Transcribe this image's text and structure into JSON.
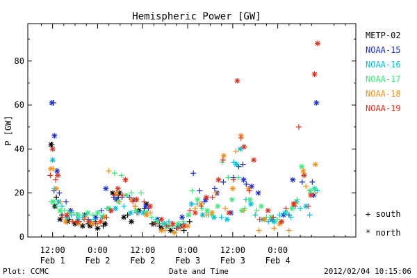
{
  "chart_data": {
    "type": "scatter",
    "title": "Hemispheric Power [GW]",
    "ylabel": "P [GW]",
    "xlabel": "Date and Time",
    "ylim": [
      0,
      97
    ],
    "xlim": [
      5.4,
      92.8
    ],
    "x_unit": "hours after 2012/02/01 00:00",
    "yticks": [
      0,
      20,
      40,
      60,
      80
    ],
    "xticks": [
      {
        "x": 12,
        "time": "12:00",
        "date": "Feb 1"
      },
      {
        "x": 24,
        "time": "0:00",
        "date": "Feb 2"
      },
      {
        "x": 36,
        "time": "12:00",
        "date": "Feb 2"
      },
      {
        "x": 48,
        "time": "0:00",
        "date": "Feb 3"
      },
      {
        "x": 60,
        "time": "12:00",
        "date": "Feb 3"
      },
      {
        "x": 72,
        "time": "0:00",
        "date": "Feb 4"
      }
    ],
    "legend_position": "right",
    "marker_legend": [
      {
        "symbol": "+",
        "label": "south"
      },
      {
        "symbol": "*",
        "label": "north"
      }
    ],
    "series": [
      {
        "name": "METP-02",
        "color": "#000000",
        "south": [
          [
            12.2,
            61
          ],
          [
            11.8,
            42
          ],
          [
            13.0,
            18
          ],
          [
            14.5,
            10
          ],
          [
            16.5,
            8
          ],
          [
            19.0,
            7
          ],
          [
            21.5,
            6
          ],
          [
            23.5,
            7
          ],
          [
            25.5,
            5
          ],
          [
            27.5,
            12
          ],
          [
            29.5,
            18
          ],
          [
            32.0,
            10
          ],
          [
            34.0,
            14
          ],
          [
            36.5,
            13
          ],
          [
            38.5,
            6
          ],
          [
            40.5,
            5
          ],
          [
            43.0,
            5
          ],
          [
            45.0,
            4
          ],
          [
            47.0,
            3
          ],
          [
            48.5,
            7
          ]
        ],
        "north": [
          [
            11.6,
            42
          ],
          [
            12.6,
            14
          ],
          [
            14.0,
            8
          ],
          [
            16.0,
            7
          ],
          [
            18.0,
            6
          ],
          [
            20.0,
            5
          ],
          [
            22.0,
            5
          ],
          [
            24.0,
            4
          ],
          [
            26.0,
            6
          ],
          [
            28.0,
            20
          ],
          [
            29.8,
            20
          ],
          [
            31.0,
            9
          ],
          [
            33.0,
            7
          ],
          [
            35.0,
            12
          ],
          [
            37.0,
            15
          ],
          [
            39.0,
            6
          ],
          [
            41.0,
            4
          ],
          [
            43.5,
            3
          ],
          [
            46.0,
            5
          ]
        ]
      },
      {
        "name": "NOAA-15",
        "color": "#1c2fd6",
        "south": [
          [
            12.4,
            21
          ],
          [
            13.8,
            20
          ],
          [
            15.6,
            16
          ],
          [
            18.5,
            10
          ],
          [
            21.5,
            8
          ],
          [
            25.0,
            12
          ],
          [
            28.3,
            18
          ],
          [
            30.5,
            18
          ],
          [
            32.5,
            18
          ],
          [
            34.5,
            11
          ],
          [
            37.5,
            13
          ],
          [
            40.5,
            6
          ],
          [
            44.0,
            5
          ],
          [
            49.5,
            29
          ],
          [
            51.2,
            21
          ],
          [
            52.4,
            16
          ],
          [
            55.2,
            22
          ],
          [
            57.5,
            25
          ],
          [
            60.2,
            27
          ],
          [
            61.6,
            32
          ],
          [
            62.7,
            33
          ],
          [
            63.6,
            24
          ],
          [
            75.0,
            10
          ],
          [
            76.6,
            14
          ],
          [
            78.5,
            25
          ],
          [
            81.2,
            25
          ]
        ],
        "north": [
          [
            11.8,
            61
          ],
          [
            12.5,
            46
          ],
          [
            13.2,
            30
          ],
          [
            16.8,
            12
          ],
          [
            20.5,
            10
          ],
          [
            23.5,
            9
          ],
          [
            26.2,
            22
          ],
          [
            29.0,
            17
          ],
          [
            33.5,
            17
          ],
          [
            36.8,
            14
          ],
          [
            40.0,
            8
          ],
          [
            46.5,
            9
          ],
          [
            52.8,
            17
          ],
          [
            55.8,
            20
          ],
          [
            59.5,
            11
          ],
          [
            62.9,
            26
          ],
          [
            65.0,
            23
          ],
          [
            66.8,
            20
          ],
          [
            70.5,
            8
          ],
          [
            73.5,
            10
          ],
          [
            76.0,
            26
          ],
          [
            81.6,
            19
          ],
          [
            82.3,
            61
          ]
        ]
      },
      {
        "name": "NOAA-16",
        "color": "#00c0d8",
        "south": [
          [
            12.5,
            22
          ],
          [
            14.5,
            14
          ],
          [
            17.0,
            10
          ],
          [
            20.0,
            9
          ],
          [
            23.0,
            8
          ],
          [
            26.5,
            13
          ],
          [
            31.0,
            14
          ],
          [
            35.0,
            11
          ],
          [
            39.5,
            8
          ],
          [
            43.0,
            7
          ],
          [
            47.0,
            6
          ],
          [
            50.5,
            15
          ],
          [
            53.5,
            10
          ],
          [
            57.0,
            9
          ],
          [
            60.3,
            34
          ],
          [
            63.5,
            17
          ],
          [
            66.0,
            10
          ],
          [
            69.5,
            7
          ],
          [
            72.5,
            10
          ],
          [
            75.5,
            9
          ],
          [
            78.0,
            13
          ],
          [
            80.5,
            10
          ],
          [
            82.5,
            21
          ]
        ],
        "north": [
          [
            12.0,
            35
          ],
          [
            13.6,
            16
          ],
          [
            15.8,
            9
          ],
          [
            18.8,
            8
          ],
          [
            22.0,
            7
          ],
          [
            25.2,
            9
          ],
          [
            28.8,
            13
          ],
          [
            32.8,
            11
          ],
          [
            36.2,
            11
          ],
          [
            41.8,
            6
          ],
          [
            45.5,
            5
          ],
          [
            49.0,
            15
          ],
          [
            52.0,
            10
          ],
          [
            55.0,
            9
          ],
          [
            58.5,
            8
          ],
          [
            61.0,
            33
          ],
          [
            62.0,
            40
          ],
          [
            64.8,
            15
          ],
          [
            68.0,
            8
          ],
          [
            71.0,
            7
          ],
          [
            74.0,
            11
          ],
          [
            77.0,
            16
          ],
          [
            79.5,
            14
          ],
          [
            81.8,
            22
          ]
        ]
      },
      {
        "name": "NOAA-17",
        "color": "#3ae87a",
        "south": [
          [
            11.6,
            16
          ],
          [
            13.2,
            14
          ],
          [
            15.2,
            12
          ],
          [
            17.6,
            11
          ],
          [
            20.2,
            10
          ],
          [
            22.8,
            10
          ],
          [
            25.6,
            10
          ],
          [
            28.5,
            29
          ],
          [
            30.4,
            28
          ],
          [
            33.0,
            20
          ],
          [
            35.6,
            20
          ],
          [
            38.4,
            9
          ],
          [
            41.2,
            6
          ],
          [
            44.0,
            5
          ],
          [
            46.8,
            7
          ],
          [
            49.2,
            21
          ],
          [
            51.8,
            13
          ],
          [
            54.4,
            10
          ],
          [
            57.2,
            34
          ],
          [
            58.8,
            27
          ],
          [
            61.5,
            27
          ],
          [
            63.2,
            13
          ],
          [
            66.4,
            12
          ],
          [
            69.0,
            9
          ],
          [
            71.8,
            8
          ],
          [
            74.6,
            11
          ],
          [
            77.2,
            17
          ],
          [
            79.0,
            28
          ],
          [
            81.8,
            22
          ]
        ],
        "north": [
          [
            12.2,
            16
          ],
          [
            14.0,
            12
          ],
          [
            16.4,
            11
          ],
          [
            18.8,
            10
          ],
          [
            21.4,
            11
          ],
          [
            24.0,
            11
          ],
          [
            27.0,
            13
          ],
          [
            29.6,
            16
          ],
          [
            31.6,
            19
          ],
          [
            34.2,
            12
          ],
          [
            37.0,
            11
          ],
          [
            39.8,
            7
          ],
          [
            42.6,
            5
          ],
          [
            45.4,
            6
          ],
          [
            48.2,
            10
          ],
          [
            50.6,
            17
          ],
          [
            53.2,
            12
          ],
          [
            56.0,
            14
          ],
          [
            59.8,
            17
          ],
          [
            62.4,
            12
          ],
          [
            64.6,
            17
          ],
          [
            67.6,
            14
          ],
          [
            70.2,
            9
          ],
          [
            73.0,
            7
          ],
          [
            75.8,
            13
          ],
          [
            78.4,
            32
          ],
          [
            80.6,
            21
          ]
        ]
      },
      {
        "name": "NOAA-18",
        "color": "#f0901a",
        "south": [
          [
            12.2,
            31
          ],
          [
            14.2,
            16
          ],
          [
            17.2,
            7
          ],
          [
            20.8,
            9
          ],
          [
            24.0,
            6
          ],
          [
            27.0,
            30
          ],
          [
            29.8,
            16
          ],
          [
            34.0,
            14
          ],
          [
            38.0,
            11
          ],
          [
            42.0,
            3
          ],
          [
            46.0,
            4
          ],
          [
            50.0,
            13
          ],
          [
            53.0,
            10
          ],
          [
            55.5,
            20
          ],
          [
            58.0,
            13
          ],
          [
            60.8,
            39
          ],
          [
            63.0,
            12
          ],
          [
            67.0,
            3
          ],
          [
            71.0,
            4
          ],
          [
            75.0,
            3
          ],
          [
            79.5,
            23
          ],
          [
            82.0,
            20
          ]
        ],
        "north": [
          [
            11.5,
            31
          ],
          [
            13.0,
            22
          ],
          [
            15.5,
            7
          ],
          [
            19.0,
            6
          ],
          [
            22.5,
            6
          ],
          [
            25.8,
            9
          ],
          [
            29.0,
            20
          ],
          [
            33.0,
            17
          ],
          [
            37.0,
            10
          ],
          [
            41.0,
            3
          ],
          [
            44.5,
            2
          ],
          [
            48.0,
            5
          ],
          [
            51.5,
            15
          ],
          [
            54.5,
            11
          ],
          [
            57.6,
            37
          ],
          [
            60.0,
            22
          ],
          [
            62.2,
            46
          ],
          [
            64.2,
            22
          ],
          [
            68.5,
            8
          ],
          [
            72.5,
            6
          ],
          [
            76.5,
            15
          ],
          [
            78.8,
            30
          ],
          [
            82.0,
            33
          ]
        ]
      },
      {
        "name": "NOAA-19",
        "color": "#e0301c",
        "south": [
          [
            11.4,
            28
          ],
          [
            12.8,
            26
          ],
          [
            14.6,
            9
          ],
          [
            17.4,
            7
          ],
          [
            20.4,
            8
          ],
          [
            23.4,
            6
          ],
          [
            26.4,
            9
          ],
          [
            28.6,
            19
          ],
          [
            30.6,
            19
          ],
          [
            33.4,
            16
          ],
          [
            36.4,
            16
          ],
          [
            39.4,
            6
          ],
          [
            42.4,
            5
          ],
          [
            45.4,
            4
          ],
          [
            48.6,
            12
          ],
          [
            51.6,
            14
          ],
          [
            54.6,
            18
          ],
          [
            57.4,
            35
          ],
          [
            60.2,
            26
          ],
          [
            62.2,
            45
          ],
          [
            64.4,
            21
          ],
          [
            67.2,
            8
          ],
          [
            70.8,
            9
          ],
          [
            74.2,
            13
          ],
          [
            77.6,
            50
          ],
          [
            80.2,
            14
          ]
        ],
        "north": [
          [
            12.0,
            40
          ],
          [
            13.4,
            28
          ],
          [
            15.8,
            10
          ],
          [
            18.6,
            7
          ],
          [
            21.6,
            7
          ],
          [
            24.8,
            7
          ],
          [
            27.6,
            12
          ],
          [
            29.4,
            22
          ],
          [
            31.4,
            26
          ],
          [
            34.4,
            17
          ],
          [
            38.0,
            14
          ],
          [
            41.0,
            8
          ],
          [
            44.0,
            6
          ],
          [
            47.0,
            5
          ],
          [
            50.0,
            11
          ],
          [
            53.0,
            18
          ],
          [
            56.2,
            26
          ],
          [
            59.0,
            11
          ],
          [
            61.2,
            71
          ],
          [
            63.0,
            41
          ],
          [
            65.6,
            35
          ],
          [
            69.4,
            12
          ],
          [
            73.0,
            7
          ],
          [
            76.2,
            15
          ],
          [
            79.0,
            28
          ],
          [
            80.8,
            19
          ],
          [
            81.8,
            74
          ],
          [
            82.6,
            88
          ]
        ]
      }
    ]
  },
  "footer": {
    "left": "Plot: CCMC",
    "center": "Date and Time",
    "right": "2012/02/04 10:15:06"
  }
}
